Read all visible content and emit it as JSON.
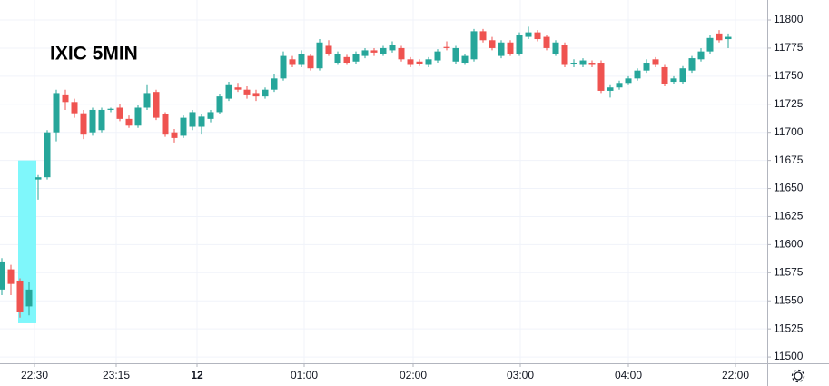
{
  "chart_data": {
    "type": "candlestick",
    "title": "IXIC 5MIN",
    "up_color": "#26a69a",
    "down_color": "#ef5350",
    "x": [
      0,
      1,
      2,
      3,
      4,
      5,
      6,
      7,
      8,
      9,
      10,
      11,
      12,
      13,
      14,
      15,
      16,
      17,
      18,
      19,
      20,
      21,
      22,
      23,
      24,
      25,
      26,
      27,
      28,
      29,
      30,
      31,
      32,
      33,
      34,
      35,
      36,
      37,
      38,
      39,
      40,
      41,
      42,
      43,
      44,
      45,
      46,
      47,
      48,
      49,
      50,
      51,
      52,
      53,
      54,
      55,
      56,
      57,
      58,
      59,
      60,
      61,
      62,
      63,
      64,
      65,
      66,
      67,
      68,
      69,
      70,
      71,
      72,
      73,
      74,
      75,
      76,
      77,
      78,
      79,
      80
    ],
    "open": [
      11560,
      11578,
      11568,
      11545,
      11658,
      11660,
      11700,
      11733,
      11727,
      11717,
      11700,
      11702,
      11720,
      11722,
      11712,
      11706,
      11722,
      11736,
      11716,
      11700,
      11697,
      11705,
      11705,
      11712,
      11718,
      11730,
      11740,
      11738,
      11735,
      11732,
      11738,
      11748,
      11765,
      11760,
      11768,
      11757,
      11777,
      11762,
      11767,
      11763,
      11768,
      11773,
      11770,
      11773,
      11775,
      11765,
      11763,
      11760,
      11764,
      11776,
      11763,
      11762,
      11765,
      11790,
      11782,
      11768,
      11780,
      11770,
      11785,
      11789,
      11785,
      11770,
      11778,
      11762,
      11760,
      11762,
      11762,
      11737,
      11740,
      11744,
      11748,
      11755,
      11765,
      11758,
      11745,
      11745,
      11755,
      11765,
      11772,
      11788,
      11783
    ],
    "high": [
      11588,
      11582,
      11570,
      11567,
      11662,
      11702,
      11738,
      11738,
      11730,
      11720,
      11722,
      11722,
      11722,
      11725,
      11715,
      11724,
      11742,
      11738,
      11718,
      11703,
      11715,
      11720,
      11716,
      11720,
      11734,
      11745,
      11744,
      11741,
      11738,
      11740,
      11752,
      11772,
      11768,
      11773,
      11770,
      11783,
      11782,
      11772,
      11769,
      11772,
      11775,
      11775,
      11777,
      11781,
      11777,
      11767,
      11765,
      11767,
      11774,
      11781,
      11777,
      11770,
      11792,
      11792,
      11785,
      11782,
      11782,
      11789,
      11794,
      11791,
      11787,
      11782,
      11780,
      11765,
      11766,
      11764,
      11764,
      11742,
      11746,
      11750,
      11757,
      11765,
      11767,
      11760,
      11750,
      11759,
      11768,
      11775,
      11787,
      11791,
      11788
    ],
    "low": [
      11555,
      11555,
      11535,
      11537,
      11640,
      11658,
      11692,
      11720,
      11713,
      11694,
      11697,
      11700,
      11718,
      11710,
      11704,
      11704,
      11720,
      11711,
      11696,
      11691,
      11695,
      11702,
      11698,
      11709,
      11716,
      11728,
      11736,
      11730,
      11728,
      11730,
      11736,
      11746,
      11758,
      11758,
      11755,
      11755,
      11768,
      11760,
      11760,
      11761,
      11766,
      11768,
      11768,
      11771,
      11763,
      11758,
      11759,
      11758,
      11762,
      11773,
      11761,
      11760,
      11763,
      11780,
      11773,
      11766,
      11768,
      11768,
      11783,
      11781,
      11773,
      11768,
      11758,
      11758,
      11758,
      11758,
      11735,
      11731,
      11738,
      11742,
      11746,
      11753,
      11758,
      11741,
      11743,
      11743,
      11753,
      11763,
      11770,
      11780,
      11775
    ],
    "close": [
      11585,
      11565,
      11540,
      11560,
      11660,
      11700,
      11735,
      11727,
      11717,
      11698,
      11720,
      11720,
      11721,
      11712,
      11706,
      11722,
      11735,
      11713,
      11698,
      11695,
      11713,
      11718,
      11714,
      11718,
      11732,
      11742,
      11738,
      11733,
      11732,
      11738,
      11748,
      11768,
      11760,
      11770,
      11757,
      11780,
      11770,
      11770,
      11762,
      11770,
      11773,
      11771,
      11775,
      11778,
      11765,
      11760,
      11761,
      11765,
      11772,
      11775,
      11775,
      11768,
      11790,
      11782,
      11775,
      11780,
      11770,
      11787,
      11789,
      11783,
      11775,
      11780,
      11760,
      11762,
      11764,
      11760,
      11737,
      11740,
      11744,
      11748,
      11755,
      11762,
      11760,
      11743,
      11748,
      11757,
      11766,
      11772,
      11784,
      11782,
      11785
    ],
    "highlight": {
      "color": "#7ff7fb",
      "x": [
        1.8,
        3.8
      ],
      "y": [
        11530,
        11675
      ]
    },
    "xlim": [
      -0.2,
      84.3
    ],
    "xticks": [
      {
        "value": 3.6,
        "label": "22:30"
      },
      {
        "value": 12.6,
        "label": "23:15"
      },
      {
        "value": 21.5,
        "label": "12"
      },
      {
        "value": 33.3,
        "label": "01:00"
      },
      {
        "value": 45.3,
        "label": "02:00"
      },
      {
        "value": 57.1,
        "label": "03:00"
      },
      {
        "value": 69,
        "label": "04:00"
      },
      {
        "value": 80.8,
        "label": "22:00"
      }
    ],
    "ylim": [
      11494.4,
      11817.8
    ],
    "yticks": [
      11500,
      11525,
      11550,
      11575,
      11600,
      11625,
      11650,
      11675,
      11700,
      11725,
      11750,
      11775,
      11800
    ],
    "grid": true
  }
}
